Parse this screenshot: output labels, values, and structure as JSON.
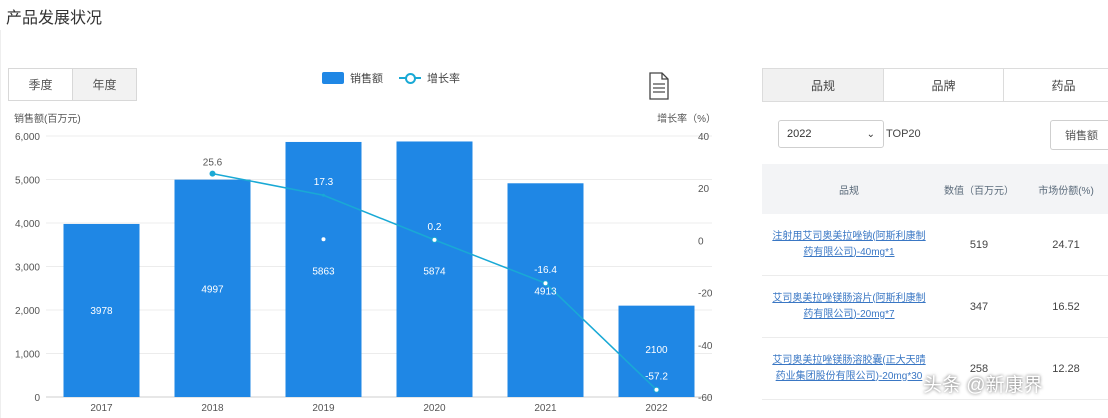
{
  "page": {
    "title": "产品发展状况"
  },
  "period_toggle": {
    "options": [
      "季度",
      "年度"
    ],
    "active": "年度"
  },
  "legend": {
    "bar_label": "销售额",
    "line_label": "增长率"
  },
  "chart_data": {
    "type": "bar",
    "categories": [
      "2017",
      "2018",
      "2019",
      "2020",
      "2021",
      "2022"
    ],
    "series": [
      {
        "name": "销售额",
        "type": "bar",
        "axis": "left",
        "values": [
          3978,
          4997,
          5863,
          5874,
          4913,
          2100
        ],
        "labels": [
          "3978",
          "4997",
          "5863",
          "5874",
          "4913",
          "2100"
        ]
      },
      {
        "name": "增长率",
        "type": "line",
        "axis": "right",
        "values": [
          null,
          25.6,
          17.3,
          0.2,
          -16.4,
          -57.2
        ],
        "labels": [
          "",
          "25.6",
          "17.3",
          "0.2",
          "-16.4",
          "-57.2"
        ]
      }
    ],
    "ylabel": "销售额(百万元)",
    "y2label": "增长率（%）",
    "ylim": [
      0,
      6000
    ],
    "y2lim": [
      -60,
      40
    ],
    "yticks": [
      "0",
      "1,000",
      "2,000",
      "3,000",
      "4,000",
      "5,000",
      "6,000"
    ],
    "y2ticks": [
      "-60",
      "-40",
      "-20",
      "0",
      "20",
      "40"
    ],
    "colors": {
      "bar": "#1f87e5",
      "line": "#19a9d5"
    },
    "grid": true
  },
  "right_panel": {
    "tabs": [
      "品规",
      "品牌",
      "药品"
    ],
    "active_tab": "品规",
    "year_select": "2022",
    "top_label": "TOP20",
    "sales_button": "销售额",
    "table": {
      "headers": [
        "品规",
        "数值（百万元）",
        "市场份额(%)"
      ],
      "rows": [
        {
          "name": "注射用艾司奥美拉唑钠(阿斯利康制药有限公司)-40mg*1",
          "value": "519",
          "share": "24.71"
        },
        {
          "name": "艾司奥美拉唑镁肠溶片(阿斯利康制药有限公司)-20mg*7",
          "value": "347",
          "share": "16.52"
        },
        {
          "name": "艾司奥美拉唑镁肠溶胶囊(正大天晴药业集团股份有限公司)-20mg*30",
          "value": "258",
          "share": "12.28"
        }
      ]
    }
  },
  "watermark": "头条 @新康界"
}
